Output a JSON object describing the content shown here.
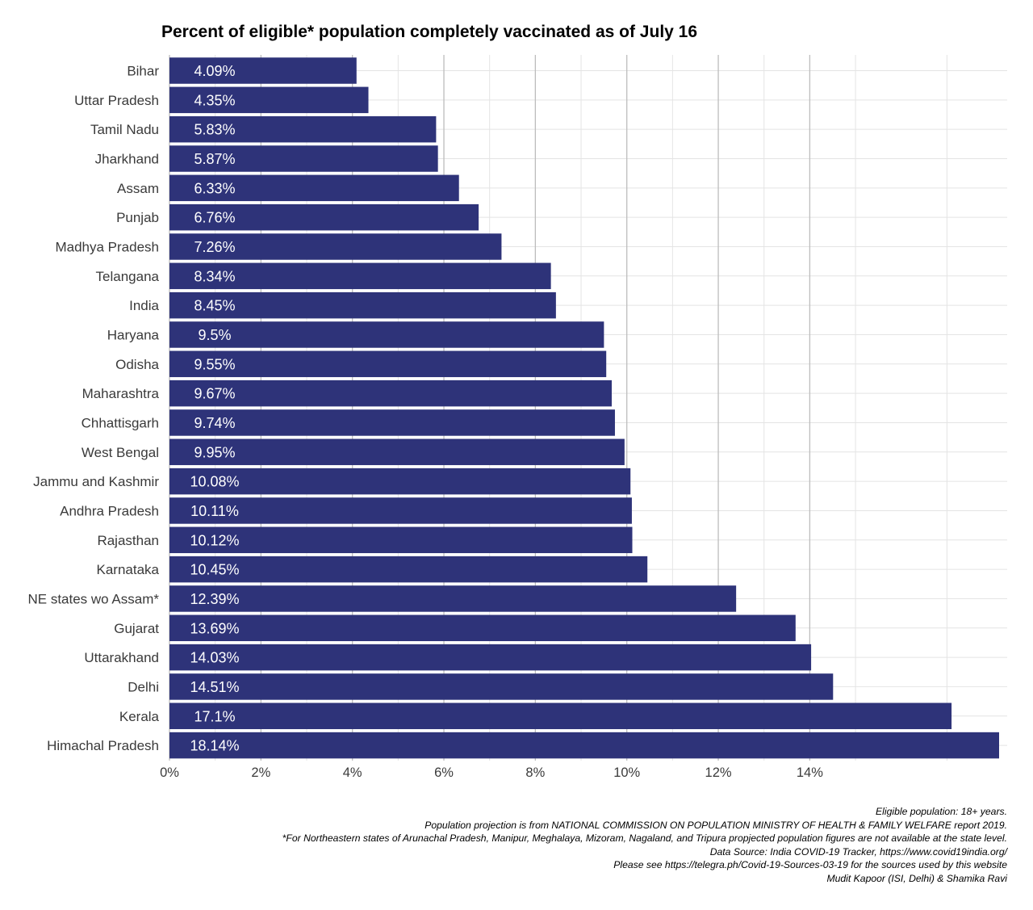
{
  "chart_data": {
    "type": "bar",
    "orientation": "horizontal",
    "title": "Percent of eligible* population completely vaccinated as of July 16",
    "xlabel": "",
    "ylabel": "",
    "xlim": [
      0,
      18.14
    ],
    "x_ticks": [
      0,
      2,
      4,
      6,
      8,
      10,
      12,
      14
    ],
    "x_tick_labels": [
      "0%",
      "2%",
      "4%",
      "6%",
      "8%",
      "10%",
      "12%",
      "14%"
    ],
    "categories": [
      "Bihar",
      "Uttar Pradesh",
      "Tamil Nadu",
      "Jharkhand",
      "Assam",
      "Punjab",
      "Madhya Pradesh",
      "Telangana",
      "India",
      "Haryana",
      "Odisha",
      "Maharashtra",
      "Chhattisgarh",
      "West Bengal",
      "Jammu and Kashmir",
      "Andhra Pradesh",
      "Rajasthan",
      "Karnataka",
      "NE states wo Assam*",
      "Gujarat",
      "Uttarakhand",
      "Delhi",
      "Kerala",
      "Himachal Pradesh"
    ],
    "values": [
      4.09,
      4.35,
      5.83,
      5.87,
      6.33,
      6.76,
      7.26,
      8.34,
      8.45,
      9.5,
      9.55,
      9.67,
      9.74,
      9.95,
      10.08,
      10.11,
      10.12,
      10.45,
      12.39,
      13.69,
      14.03,
      14.51,
      17.1,
      18.14
    ],
    "value_labels": [
      "4.09%",
      "4.35%",
      "5.83%",
      "5.87%",
      "6.33%",
      "6.76%",
      "7.26%",
      "8.34%",
      "8.45%",
      "9.5%",
      "9.55%",
      "9.67%",
      "9.74%",
      "9.95%",
      "10.08%",
      "10.11%",
      "10.12%",
      "10.45%",
      "12.39%",
      "13.69%",
      "14.03%",
      "14.51%",
      "17.1%",
      "18.14%"
    ],
    "bar_color": "#2e3379",
    "label_color": "#ffffff",
    "grid": true,
    "legend": "none"
  },
  "caption": [
    "Eligible population: 18+ years.",
    "Population projection is from NATIONAL COMMISSION ON POPULATION MINISTRY OF HEALTH & FAMILY WELFARE report 2019.",
    "*For Northeastern states of Arunachal Pradesh, Manipur, Meghalaya, Mizoram, Nagaland, and Tripura propjected population figures are not available at the state level.",
    "Data Source: India COVID-19 Tracker, https://www.covid19india.org/",
    "Please see https://telegra.ph/Covid-19-Sources-03-19 for the sources used by this website",
    "Mudit Kapoor (ISI, Delhi) & Shamika Ravi"
  ]
}
